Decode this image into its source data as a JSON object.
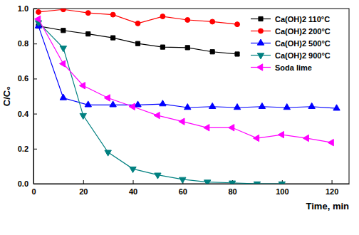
{
  "chart_data": {
    "type": "line",
    "x_label": "Time, min",
    "y_label": "C/C₀",
    "xlim": [
      0,
      127
    ],
    "ylim": [
      0,
      1
    ],
    "xticks": [
      0,
      20,
      40,
      60,
      80,
      100,
      120
    ],
    "yticks": [
      {
        "value": 0,
        "label": "0.0"
      },
      {
        "value": 0.2,
        "label": "0.2"
      },
      {
        "value": 0.4,
        "label": "0.4"
      },
      {
        "value": 0.6,
        "label": "0.6"
      },
      {
        "value": 0.8,
        "label": "0.8"
      },
      {
        "value": 1,
        "label": "1.0"
      }
    ],
    "grid": false,
    "legend": "upper right",
    "series": [
      {
        "name": "Ca(OH)2 110°C",
        "color": "#000000",
        "marker": "square",
        "x": [
          2,
          12,
          22,
          32,
          42,
          52,
          62,
          72,
          82
        ],
        "values": [
          0.9,
          0.875,
          0.855,
          0.833,
          0.8,
          0.78,
          0.777,
          0.753,
          0.74
        ]
      },
      {
        "name": "Ca(OH)2 200°C",
        "color": "#ff0000",
        "marker": "circle",
        "x": [
          2,
          12,
          22,
          32,
          42,
          52,
          62,
          72,
          82
        ],
        "values": [
          0.98,
          0.995,
          0.975,
          0.965,
          0.915,
          0.955,
          0.935,
          0.925,
          0.91
        ]
      },
      {
        "name": "Ca(OH)2 500°C",
        "color": "#0000ff",
        "marker": "triangle-up",
        "x": [
          2,
          12,
          22,
          32,
          42,
          52,
          62,
          72,
          82,
          92,
          102,
          112,
          122
        ],
        "values": [
          0.9,
          0.49,
          0.45,
          0.45,
          0.45,
          0.455,
          0.435,
          0.44,
          0.435,
          0.44,
          0.435,
          0.44,
          0.43
        ]
      },
      {
        "name": "Ca(OH)2 900°C",
        "color": "#008080",
        "marker": "triangle-down",
        "x": [
          2,
          12,
          20,
          30,
          40,
          50,
          60,
          70,
          80,
          90,
          100
        ],
        "values": [
          0.92,
          0.775,
          0.39,
          0.18,
          0.085,
          0.05,
          0.025,
          0.01,
          0.005,
          0.0,
          0.0
        ]
      },
      {
        "name": "Soda lime",
        "color": "#ff00ff",
        "marker": "triangle-left",
        "x": [
          2,
          12,
          20,
          30,
          40,
          50,
          60,
          70,
          80,
          90,
          100,
          110,
          120
        ],
        "values": [
          0.94,
          0.685,
          0.56,
          0.49,
          0.44,
          0.39,
          0.355,
          0.32,
          0.32,
          0.26,
          0.28,
          0.26,
          0.235
        ]
      }
    ]
  }
}
